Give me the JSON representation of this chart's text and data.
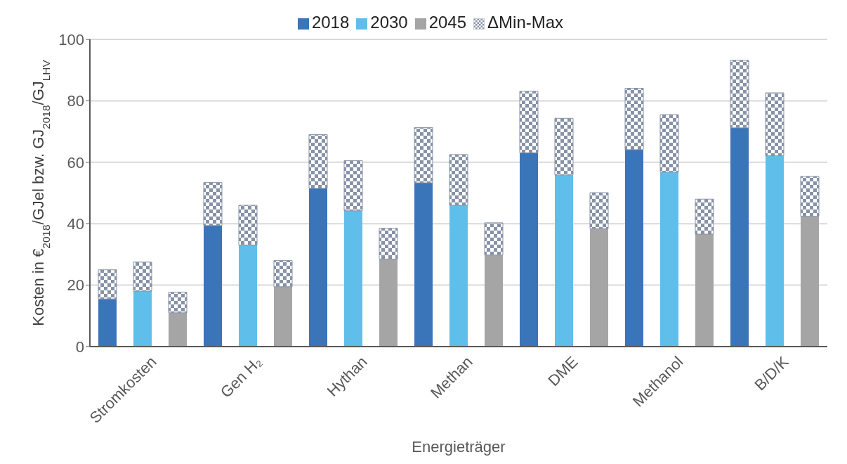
{
  "chart_data": {
    "type": "bar",
    "stacked": true,
    "xlabel": "Energieträger",
    "ylabel": "Kosten in €$_{2018}$/GJel bzw. GJ$_{2018}$/GJ$_{LHV}$",
    "categories": [
      null,
      "Stromkosten",
      null,
      null,
      "Gen H₂",
      null,
      null,
      "Hythan",
      null,
      null,
      "Methan",
      null,
      null,
      "DME",
      null,
      null,
      "Methanol",
      null,
      null,
      "B/D/K",
      null
    ],
    "series": [
      {
        "name": "2018",
        "color": "#3a74b9",
        "values": [
          15.5,
          null,
          null,
          39.4,
          null,
          null,
          51.5,
          null,
          null,
          53.3,
          null,
          null,
          63.1,
          null,
          null,
          64.1,
          null,
          null,
          71.2,
          null,
          null
        ]
      },
      {
        "name": "2030",
        "color": "#5fbfea",
        "values": [
          null,
          18,
          null,
          null,
          33,
          null,
          null,
          44.2,
          null,
          null,
          46,
          null,
          null,
          55.8,
          null,
          null,
          56.8,
          null,
          null,
          62.1,
          null
        ]
      },
      {
        "name": "2045",
        "color": "#a5a5a5",
        "values": [
          null,
          null,
          11,
          null,
          null,
          19.5,
          null,
          null,
          28.5,
          null,
          null,
          29.8,
          null,
          null,
          38.4,
          null,
          null,
          36.6,
          null,
          null,
          42.4
        ]
      },
      {
        "name": "ΔMin-Max",
        "color": "#8792a6",
        "values": [
          9.5,
          9.5,
          6.7,
          14,
          13,
          8.5,
          17.5,
          16.3,
          10,
          18,
          16.5,
          10.5,
          20,
          18.5,
          11.7,
          20,
          18.7,
          11.4,
          22,
          20.5,
          13
        ]
      }
    ],
    "ylim": [
      0,
      100
    ],
    "yticks": [
      0,
      20,
      40,
      60,
      80,
      100
    ],
    "grid": "y",
    "legend": "top"
  }
}
